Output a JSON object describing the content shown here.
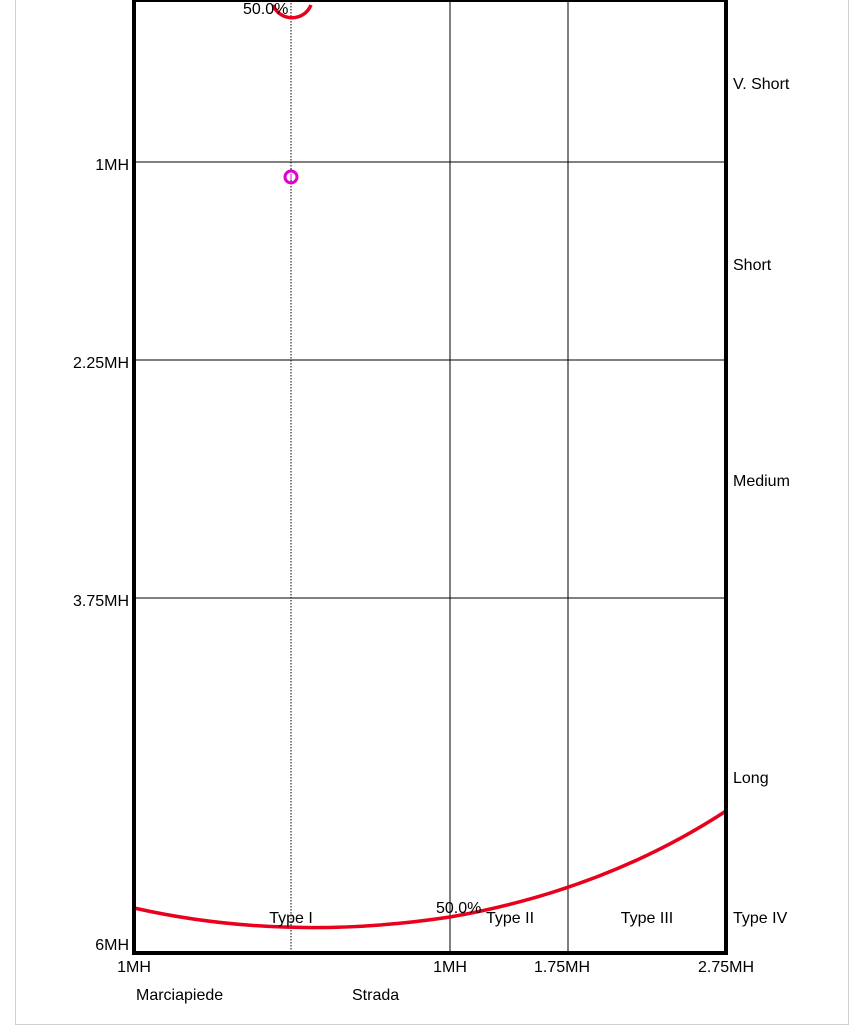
{
  "chart_data": {
    "type": "line",
    "title": "",
    "x_axis": {
      "tick_labels": [
        "1MH",
        "1MH",
        "1.75MH",
        "2.75MH"
      ],
      "side_labels": [
        "Marciapiede",
        "Strada"
      ]
    },
    "y_axis": {
      "tick_labels": [
        "1MH",
        "2.25MH",
        "3.75MH",
        "6MH"
      ]
    },
    "throw_classes": [
      "V. Short",
      "Short",
      "Medium",
      "Long"
    ],
    "lateral_types": [
      "Type I",
      "Type II",
      "Type III",
      "Type IV"
    ],
    "series": [
      {
        "name": "",
        "label": "50.0%",
        "color": "#e8001c"
      },
      {
        "name": "",
        "label": "50.0%",
        "color": "#e8001c"
      }
    ],
    "marker": {
      "shape": "circle",
      "color": "#e000d0"
    },
    "grid": true
  }
}
